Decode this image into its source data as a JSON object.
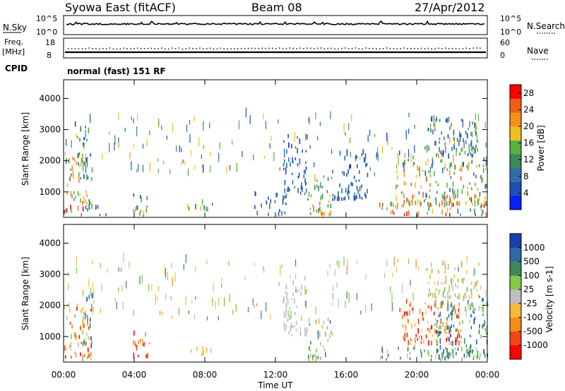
{
  "header": {
    "title": "Syowa East (fitACF)",
    "beam": "Beam 08",
    "date": "27/Apr/2012"
  },
  "noise_panel": {
    "left_label": "N.Sky",
    "left_ticks": [
      "10^5",
      "10^0"
    ],
    "right_label": "N.Search",
    "right_ticks": [
      "10^5",
      "10^0"
    ]
  },
  "freq_panel": {
    "left_label_line1": "Freq.",
    "left_label_line2": "[MHz]",
    "left_ticks": [
      "18",
      "8"
    ],
    "right_label": "Nave",
    "right_ticks": [
      "60",
      "0"
    ]
  },
  "cpid": {
    "label": "CPID",
    "value": "normal (fast) 151 RF"
  },
  "xaxis": {
    "label": "Time UT",
    "ticks": [
      "00:00",
      "04:00",
      "08:00",
      "12:00",
      "16:00",
      "20:00",
      "00:00"
    ]
  },
  "colors": {
    "power_scale": [
      "#0a1eff",
      "#1e4fb4",
      "#2f6fa8",
      "#3a8a5c",
      "#56b044",
      "#f0c020",
      "#f59018",
      "#f06018",
      "#ff0000"
    ],
    "velocity_scale": [
      "#ff0000",
      "#f24414",
      "#f58c1c",
      "#f5bc3c",
      "#bfbfbf",
      "#82c84a",
      "#3b8a5c",
      "#2d6aa3",
      "#1a3fb0"
    ]
  },
  "chart_data": [
    {
      "type": "heatmap",
      "title": "",
      "xlabel": "Time UT",
      "ylabel": "Slant Range [km]",
      "xlim": [
        0,
        24
      ],
      "ylim": [
        180,
        4600
      ],
      "yticks": [
        "1000",
        "2000",
        "3000",
        "4000"
      ],
      "colorbar_label": "Power [dB]",
      "colorbar_ticks": [
        "4",
        "8",
        "12",
        "16",
        "20",
        "24",
        "28"
      ],
      "clim": [
        0,
        30
      ],
      "blobs": [
        {
          "t": [
            0.0,
            1.6
          ],
          "r": [
            200,
            2200
          ],
          "v": [
            3,
            28
          ]
        },
        {
          "t": [
            0.6,
            1.4
          ],
          "r": [
            1800,
            3300
          ],
          "v": [
            4,
            20
          ]
        },
        {
          "t": [
            1.7,
            2.4
          ],
          "r": [
            200,
            500
          ],
          "v": [
            4,
            10
          ]
        },
        {
          "t": [
            3.9,
            4.9
          ],
          "r": [
            200,
            900
          ],
          "v": [
            4,
            22
          ]
        },
        {
          "t": [
            6.7,
            8.4
          ],
          "r": [
            350,
            650
          ],
          "v": [
            4,
            20
          ]
        },
        {
          "t": [
            10.8,
            12.6
          ],
          "r": [
            200,
            900
          ],
          "v": [
            3,
            9
          ]
        },
        {
          "t": [
            12.4,
            13.8
          ],
          "r": [
            900,
            2800
          ],
          "v": [
            3,
            10
          ]
        },
        {
          "t": [
            13.8,
            15.2
          ],
          "r": [
            200,
            1500
          ],
          "v": [
            4,
            24
          ]
        },
        {
          "t": [
            15.2,
            17.2
          ],
          "r": [
            700,
            2400
          ],
          "v": [
            3,
            9
          ]
        },
        {
          "t": [
            17.8,
            24.0
          ],
          "r": [
            200,
            600
          ],
          "v": [
            8,
            30
          ]
        },
        {
          "t": [
            18.8,
            24.0
          ],
          "r": [
            500,
            2200
          ],
          "v": [
            3,
            26
          ]
        },
        {
          "t": [
            20.5,
            23.5
          ],
          "r": [
            2200,
            3300
          ],
          "v": [
            3,
            16
          ]
        }
      ]
    },
    {
      "type": "heatmap",
      "title": "",
      "xlabel": "Time UT",
      "ylabel": "Slant Range [km]",
      "xlim": [
        0,
        24
      ],
      "ylim": [
        180,
        4600
      ],
      "yticks": [
        "1000",
        "2000",
        "3000",
        "4000"
      ],
      "colorbar_label": "Velocity [m s-1]",
      "colorbar_ticks": [
        "-1000",
        "-500",
        "-100",
        "-25",
        "25",
        "100",
        "500",
        "1000"
      ],
      "clim": [
        -1000,
        1000
      ],
      "blobs": [
        {
          "t": [
            0.0,
            1.6
          ],
          "r": [
            200,
            2000
          ],
          "v": [
            -1000,
            300
          ]
        },
        {
          "t": [
            1.0,
            1.6
          ],
          "r": [
            700,
            2400
          ],
          "v": [
            100,
            1000
          ]
        },
        {
          "t": [
            3.9,
            4.9
          ],
          "r": [
            300,
            1100
          ],
          "v": [
            -1000,
            -300
          ]
        },
        {
          "t": [
            6.7,
            8.4
          ],
          "r": [
            350,
            600
          ],
          "v": [
            -300,
            -50
          ]
        },
        {
          "t": [
            12.4,
            13.8
          ],
          "r": [
            1000,
            2800
          ],
          "v": [
            -50,
            60
          ]
        },
        {
          "t": [
            13.8,
            15.2
          ],
          "r": [
            200,
            1500
          ],
          "v": [
            -200,
            700
          ]
        },
        {
          "t": [
            17.8,
            24.0
          ],
          "r": [
            200,
            600
          ],
          "v": [
            -50,
            800
          ]
        },
        {
          "t": [
            19.0,
            22.5
          ],
          "r": [
            700,
            2100
          ],
          "v": [
            -1000,
            -200
          ]
        },
        {
          "t": [
            21.0,
            24.0
          ],
          "r": [
            300,
            2300
          ],
          "v": [
            50,
            900
          ]
        },
        {
          "t": [
            20.5,
            23.5
          ],
          "r": [
            2200,
            3300
          ],
          "v": [
            -300,
            300
          ]
        }
      ]
    }
  ]
}
